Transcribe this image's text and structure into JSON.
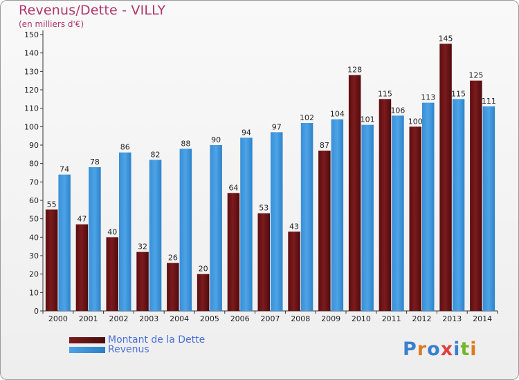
{
  "header": {
    "title": "Revenus/Dette - VILLY",
    "subtitle": "(en milliers d'€)"
  },
  "colors": {
    "dette": "#7b1b1d",
    "revenus": "#4da3e6",
    "title": "#b0366a",
    "legend_text": "#4a6fd6"
  },
  "logo": {
    "text": "Proxiti",
    "letter_colors": [
      "#3a7fd0",
      "#e07a1f",
      "#3a7fd0",
      "#e04040",
      "#3a7fd0",
      "#74b62e",
      "#e07a1f"
    ]
  },
  "chart_data": {
    "type": "bar",
    "title": "Revenus/Dette - VILLY",
    "subtitle": "(en milliers d'€)",
    "categories": [
      "2000",
      "2001",
      "2002",
      "2003",
      "2004",
      "2005",
      "2006",
      "2007",
      "2008",
      "2009",
      "2010",
      "2011",
      "2012",
      "2013",
      "2014"
    ],
    "series": [
      {
        "name": "Montant de la Dette",
        "values": [
          55,
          47,
          40,
          32,
          26,
          20,
          64,
          53,
          43,
          87,
          128,
          115,
          100,
          145,
          125
        ]
      },
      {
        "name": "Revenus",
        "values": [
          74,
          78,
          86,
          82,
          88,
          90,
          94,
          97,
          102,
          104,
          101,
          106,
          113,
          115,
          111
        ]
      }
    ],
    "ylim": [
      0,
      150
    ],
    "yticks": [
      0,
      10,
      20,
      30,
      40,
      50,
      60,
      70,
      80,
      90,
      100,
      110,
      120,
      130,
      140,
      150
    ],
    "grid": false,
    "legend": "bottom-left"
  }
}
